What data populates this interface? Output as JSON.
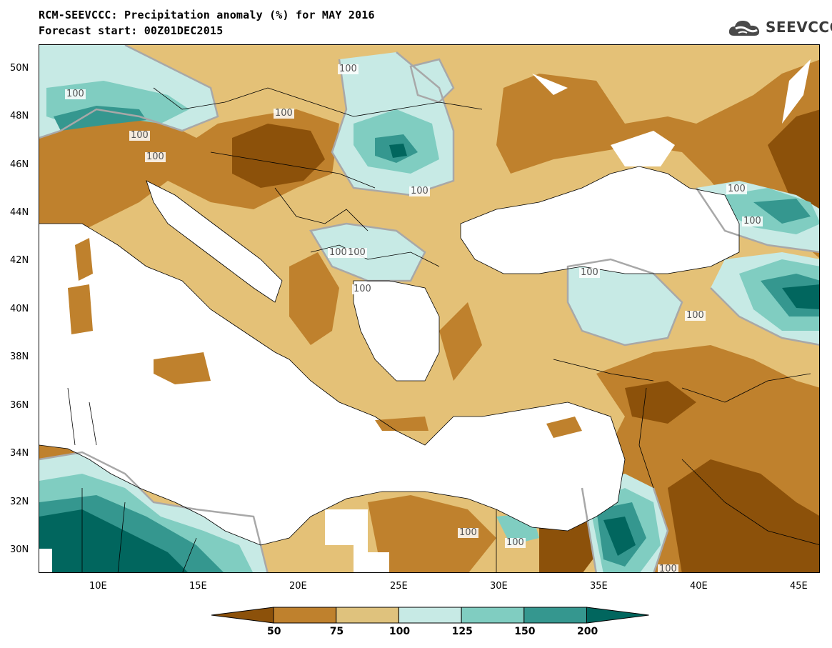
{
  "header": {
    "title_line1": "RCM-SEEVCCC: Precipitation anomaly (%) for MAY 2016",
    "title_line2": "Forecast start: 00Z01DEC2015"
  },
  "logo": {
    "text": "SEEVCCC",
    "icon": "cloud-logo-icon",
    "color": "#3a3a3a"
  },
  "map": {
    "lat_labels": [
      "50N",
      "48N",
      "46N",
      "44N",
      "42N",
      "40N",
      "38N",
      "36N",
      "34N",
      "32N",
      "30N"
    ],
    "lon_labels": [
      "10E",
      "15E",
      "20E",
      "25E",
      "30E",
      "35E",
      "40E",
      "45E"
    ],
    "contour_labels": [
      "100",
      "100",
      "100",
      "100",
      "100",
      "100",
      "100",
      "100",
      "100",
      "100",
      "100",
      "100",
      "100",
      "100",
      "100",
      "100"
    ],
    "colors": {
      "below_50": "#8c510a",
      "50_75": "#bf812d",
      "75_100": "#dfc27d",
      "100_125": "#c7eae5",
      "125_150": "#80cdc1",
      "150_200": "#35978f",
      "above_200": "#01665e",
      "sea": "#ffffff"
    }
  },
  "colorbar": {
    "labels": [
      "50",
      "75",
      "100",
      "125",
      "150",
      "200"
    ],
    "colors": [
      "#8c510a",
      "#bf812d",
      "#dfc27d",
      "#c7eae5",
      "#80cdc1",
      "#35978f",
      "#01665e"
    ]
  }
}
